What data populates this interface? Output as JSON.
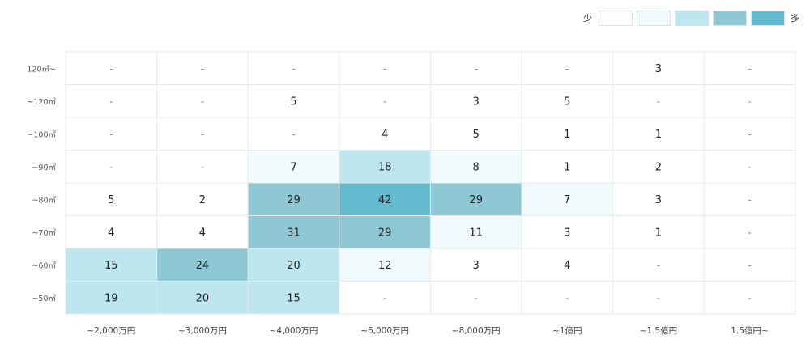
{
  "chart_data": {
    "type": "heatmap",
    "title": "",
    "legend": {
      "low_label": "少",
      "high_label": "多",
      "colors": [
        "#ffffff",
        "#f1fafd",
        "#bde6ef",
        "#8fc8d5",
        "#63b9cd"
      ]
    },
    "x_categories": [
      "~2,000万円",
      "~3,000万円",
      "~4,000万円",
      "~6,000万円",
      "~8,000万円",
      "~1億円",
      "~1.5億円",
      "1.5億円~"
    ],
    "y_categories": [
      "120㎡~",
      "~120㎡",
      "~100㎡",
      "~90㎡",
      "~80㎡",
      "~70㎡",
      "~60㎡",
      "~50㎡"
    ],
    "empty_marker": "-",
    "values": [
      [
        null,
        null,
        null,
        null,
        null,
        null,
        3,
        null
      ],
      [
        null,
        null,
        5,
        null,
        3,
        5,
        null,
        null
      ],
      [
        null,
        null,
        null,
        4,
        5,
        1,
        1,
        null
      ],
      [
        null,
        null,
        7,
        18,
        8,
        1,
        2,
        null
      ],
      [
        5,
        2,
        29,
        42,
        29,
        7,
        3,
        null
      ],
      [
        4,
        4,
        31,
        29,
        11,
        3,
        1,
        null
      ],
      [
        15,
        24,
        20,
        12,
        3,
        4,
        null,
        null
      ],
      [
        19,
        20,
        15,
        null,
        null,
        null,
        null,
        null
      ]
    ],
    "value_range": [
      0,
      42
    ]
  }
}
